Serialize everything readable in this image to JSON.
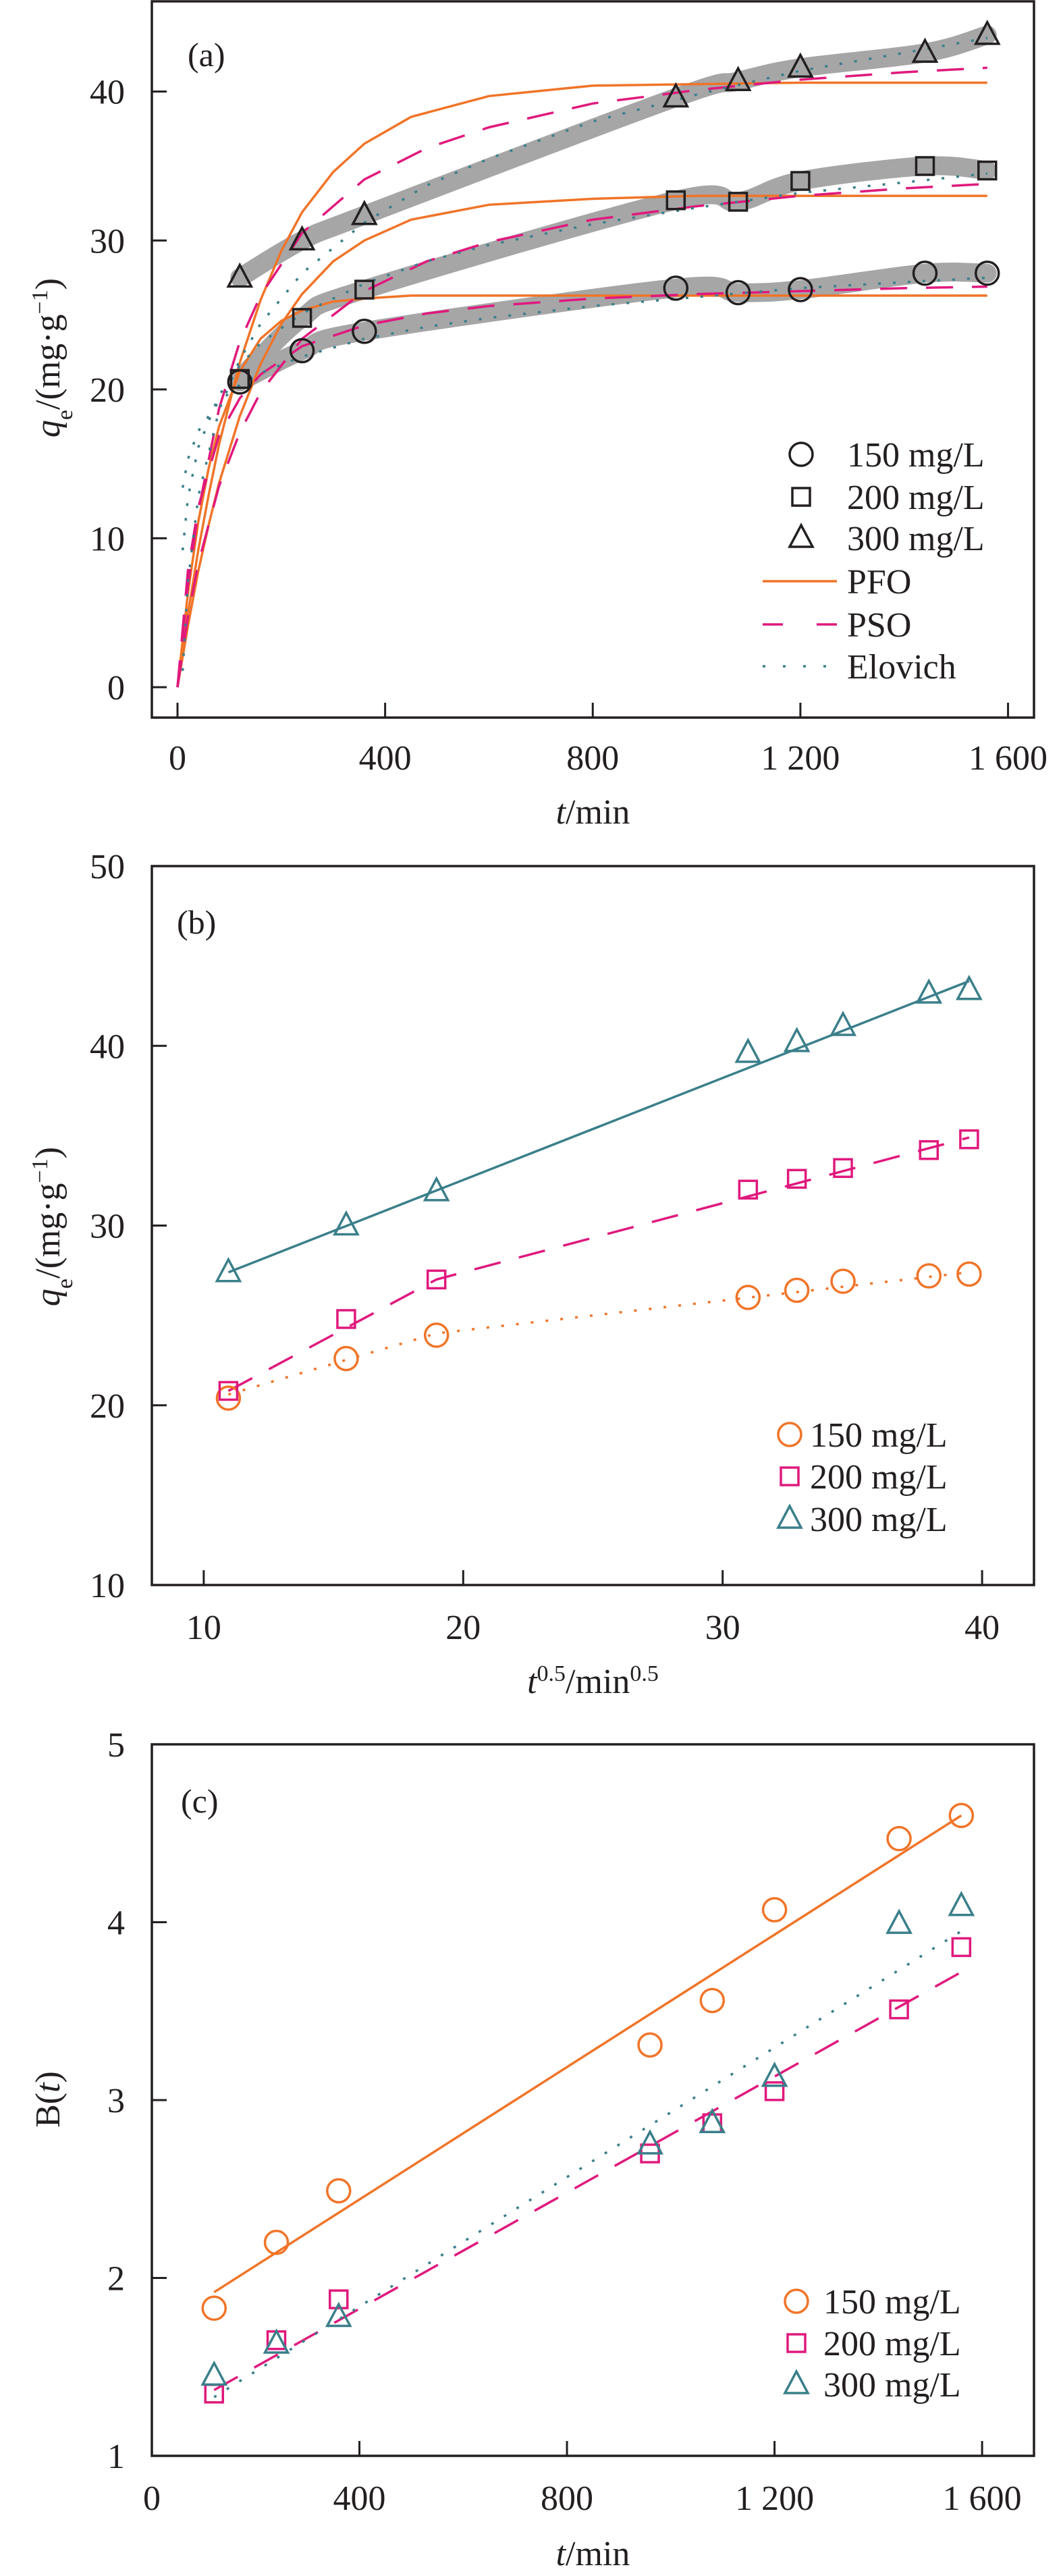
{
  "chart_data": [
    {
      "panel_label": "(a)",
      "type": "line",
      "xlabel_parts": [
        "t",
        "/min"
      ],
      "ylabel_parts": [
        "q",
        "e",
        "/(mg·g",
        "−1",
        ")"
      ],
      "xlim": [
        -49.4,
        1650
      ],
      "ylim": [
        -2.04,
        46.06
      ],
      "xticks": [
        0,
        400,
        800,
        1200,
        1600
      ],
      "xtick_labels": [
        "0",
        "400",
        "800",
        "1 200",
        "1 600"
      ],
      "yticks": [
        0,
        10,
        20,
        30,
        40
      ],
      "ytick_labels": [
        "0",
        "10",
        "20",
        "30",
        "40"
      ],
      "grid": false,
      "legend_position": "bottom-right",
      "band_color": "#A6A6A6",
      "x": [
        120,
        240,
        360,
        960,
        1080,
        1200,
        1440,
        1560
      ],
      "series": [
        {
          "name": "150 mg/L",
          "marker": "circle",
          "color": "#231f20",
          "values": [
            20.5,
            22.6,
            23.9,
            26.8,
            26.5,
            26.7,
            27.8,
            27.8
          ]
        },
        {
          "name": "200 mg/L",
          "marker": "square",
          "color": "#231f20",
          "values": [
            20.7,
            24.8,
            26.7,
            32.7,
            32.6,
            34.0,
            35.0,
            34.7
          ]
        },
        {
          "name": "300 mg/L",
          "marker": "triangle",
          "color": "#231f20",
          "values": [
            27.5,
            30.0,
            31.7,
            39.6,
            40.7,
            41.6,
            42.6,
            43.8
          ]
        }
      ],
      "fits": [
        {
          "name": "PFO",
          "style": "solid",
          "color": "#F07428",
          "t": [
            0,
            20,
            40,
            60,
            80,
            120,
            160,
            200,
            240,
            300,
            360,
            450,
            600,
            800,
            1000,
            1200,
            1400,
            1560
          ],
          "curves": [
            [
              0,
              6.3,
              11.1,
              14.7,
              17.5,
              21.2,
              23.4,
              24.6,
              25.3,
              25.9,
              26.1,
              26.3,
              26.3,
              26.3,
              26.3,
              26.3,
              26.3,
              26.3
            ],
            [
              0,
              4.1,
              7.8,
              10.9,
              13.7,
              18.2,
              21.7,
              24.4,
              26.4,
              28.6,
              30.0,
              31.4,
              32.4,
              32.8,
              33.0,
              33.0,
              33.0,
              33.0
            ],
            [
              0,
              4.9,
              9.2,
              12.9,
              16.3,
              21.8,
              26.0,
              29.3,
              31.9,
              34.6,
              36.5,
              38.3,
              39.7,
              40.4,
              40.5,
              40.6,
              40.6,
              40.6
            ]
          ]
        },
        {
          "name": "PSO",
          "style": "dashed",
          "color": "#E0197D",
          "t": [
            0,
            20,
            40,
            80,
            120,
            160,
            240,
            360,
            480,
            600,
            800,
            1000,
            1200,
            1400,
            1560
          ],
          "curves": [
            [
              0,
              7.8,
              12.1,
              16.9,
              19.4,
              21.0,
              22.9,
              24.3,
              25.1,
              25.6,
              26.1,
              26.4,
              26.6,
              26.8,
              26.9
            ],
            [
              0,
              4.7,
              8.3,
              13.5,
              17.1,
              19.8,
              23.4,
              26.6,
              28.6,
              29.9,
              31.4,
              32.3,
              33.0,
              33.5,
              33.8
            ],
            [
              0,
              6.8,
              11.8,
              18.7,
              23.2,
              26.3,
              30.5,
              34.1,
              36.2,
              37.6,
              39.2,
              40.1,
              40.8,
              41.3,
              41.6
            ]
          ]
        },
        {
          "name": "Elovich",
          "style": "dotted",
          "color": "#3A7F8A",
          "t": [
            10,
            20,
            40,
            80,
            120,
            160,
            240,
            360,
            480,
            600,
            800,
            1000,
            1200,
            1400,
            1560
          ],
          "curves": [
            [
              13.4,
              15.3,
              17.2,
              19.2,
              20.3,
              21.1,
              22.2,
              23.4,
              24.2,
              24.8,
              25.6,
              26.2,
              26.8,
              27.2,
              27.5
            ],
            [
              9.2,
              12.7,
              16.1,
              19.6,
              21.6,
              23.1,
              25.1,
              27.1,
              28.6,
              29.7,
              31.1,
              32.2,
              33.2,
              33.9,
              34.5
            ],
            [
              1.1,
              7.0,
              12.8,
              18.6,
              22.0,
              24.4,
              27.8,
              31.2,
              33.7,
              35.5,
              38.0,
              39.8,
              41.4,
              42.6,
              43.6
            ]
          ]
        }
      ]
    },
    {
      "panel_label": "(b)",
      "type": "line",
      "xlabel_parts": [
        "t",
        "0.5",
        "/min",
        "0.5"
      ],
      "ylabel_parts": [
        "q",
        "e",
        "/(mg·g",
        "−1",
        ")"
      ],
      "xlim": [
        8,
        42
      ],
      "ylim": [
        10,
        50
      ],
      "xticks": [
        10,
        20,
        30,
        40
      ],
      "xtick_labels": [
        "10",
        "20",
        "30",
        "40"
      ],
      "yticks": [
        10,
        20,
        30,
        40,
        50
      ],
      "ytick_labels": [
        "10",
        "20",
        "30",
        "40",
        "50"
      ],
      "grid": false,
      "legend_position": "bottom-right",
      "x": [
        10.95,
        15.49,
        18.97,
        30.98,
        32.86,
        34.64,
        37.95,
        39.5
      ],
      "series": [
        {
          "name": "150 mg/L",
          "marker": "circle",
          "color": "#F07428",
          "values": [
            20.4,
            22.6,
            23.9,
            26.0,
            26.4,
            26.9,
            27.2,
            27.3
          ]
        },
        {
          "name": "200 mg/L",
          "marker": "square",
          "color": "#E0197D",
          "values": [
            20.8,
            24.8,
            27.0,
            32.0,
            32.6,
            33.2,
            34.2,
            34.8
          ]
        },
        {
          "name": "300 mg/L",
          "marker": "triangle",
          "color": "#3A7F8A",
          "values": [
            27.4,
            30.0,
            31.9,
            39.6,
            40.2,
            41.1,
            42.9,
            43.1
          ]
        }
      ],
      "fits": [
        {
          "style": "dotted",
          "color": "#F07428",
          "x": [
            10.95,
            18.97,
            39.5
          ],
          "y": [
            20.6,
            24.0,
            27.4
          ]
        },
        {
          "style": "dashed",
          "color": "#E0197D",
          "x": [
            10.95,
            18.97,
            39.5
          ],
          "y": [
            20.8,
            27.0,
            34.9
          ]
        },
        {
          "style": "solid",
          "color": "#3A7F8A",
          "x": [
            10.95,
            39.5
          ],
          "y": [
            27.4,
            43.6
          ]
        }
      ]
    },
    {
      "panel_label": "(c)",
      "type": "scatter",
      "xlabel_parts": [
        "t",
        "/min"
      ],
      "ylabel_parts": [
        "B(",
        "t",
        ")"
      ],
      "xlim": [
        0,
        1700
      ],
      "ylim": [
        1,
        5
      ],
      "xticks": [
        0,
        400,
        800,
        1200,
        1600
      ],
      "xtick_labels": [
        "0",
        "400",
        "800",
        "1 200",
        "1 600"
      ],
      "yticks": [
        1,
        2,
        3,
        4,
        5
      ],
      "ytick_labels": [
        "1",
        "2",
        "3",
        "4",
        "5"
      ],
      "grid": false,
      "legend_position": "bottom-right",
      "x": [
        120,
        240,
        360,
        960,
        1080,
        1200,
        1440,
        1560
      ],
      "series": [
        {
          "name": "150 mg/L",
          "marker": "circle",
          "color": "#F07428",
          "values": [
            1.83,
            2.2,
            2.49,
            3.31,
            3.56,
            4.07,
            4.47,
            4.6
          ]
        },
        {
          "name": "200 mg/L",
          "marker": "square",
          "color": "#E0197D",
          "values": [
            1.35,
            1.65,
            1.88,
            2.7,
            2.87,
            3.05,
            3.51,
            3.86
          ]
        },
        {
          "name": "300 mg/L",
          "marker": "triangle",
          "color": "#3A7F8A",
          "values": [
            1.45,
            1.63,
            1.78,
            2.75,
            2.87,
            3.13,
            3.99,
            4.09
          ]
        }
      ],
      "fits": [
        {
          "style": "solid",
          "color": "#F07428",
          "x": [
            120,
            1560
          ],
          "y": [
            1.92,
            4.6
          ]
        },
        {
          "style": "dashed",
          "color": "#E0197D",
          "x": [
            120,
            1560
          ],
          "y": [
            1.37,
            3.72
          ]
        },
        {
          "style": "dotted",
          "color": "#3A7F8A",
          "x": [
            120,
            1560
          ],
          "y": [
            1.33,
            3.95
          ]
        }
      ]
    }
  ]
}
